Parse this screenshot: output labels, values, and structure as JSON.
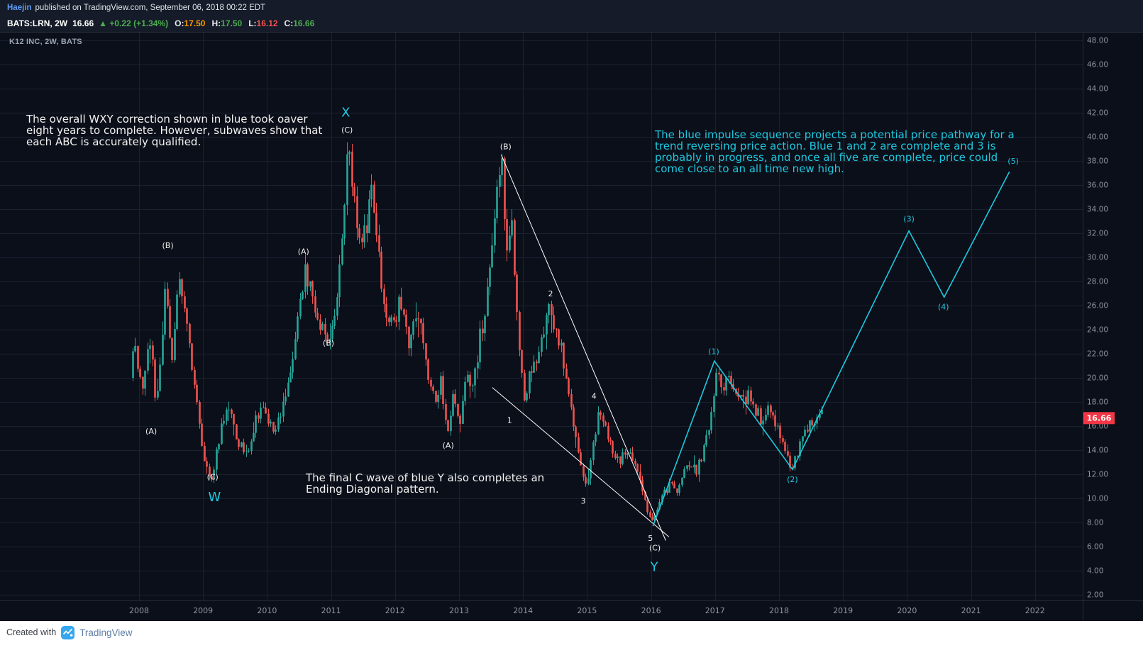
{
  "header": {
    "author": "Haejin",
    "published": "published on TradingView.com, September 06, 2018 00:22 EDT",
    "symbol": "BATS:LRN, 2W",
    "last": "16.66",
    "arrow": "▲",
    "change": "+0.22 (+1.34%)",
    "ohlc": [
      {
        "label": "O:",
        "value": "17.50",
        "color": "#ff9800"
      },
      {
        "label": "H:",
        "value": "17.50",
        "color": "#4caf50"
      },
      {
        "label": "L:",
        "value": "16.12",
        "color": "#ef5350"
      },
      {
        "label": "C:",
        "value": "16.66",
        "color": "#4caf50"
      }
    ]
  },
  "pane_title": "K12 INC, 2W, BATS",
  "footer": {
    "created_with": "Created with",
    "brand": "TradingView"
  },
  "colors": {
    "chart_bg": "#0b0f19",
    "header_bg": "#151b28",
    "grid": "#1a2130",
    "axis_text": "#8f96a3",
    "up": "#26a69a",
    "down": "#ef5350",
    "accent_cyan": "#1ec8df",
    "tag_red": "#f23645",
    "white_line": "#ffffff"
  },
  "chart_data": {
    "type": "candlestick",
    "title": "K12 INC, 2W, BATS",
    "symbol": "BATS:LRN",
    "timeframe": "2W",
    "x_axis": {
      "start": 2008,
      "end": 2022,
      "unit": "year"
    },
    "y_axis": {
      "min": 2,
      "max": 48,
      "step": 2
    },
    "price_line": {
      "value": 16.66,
      "tag": "16.66"
    },
    "candles": {
      "start": 2007.9,
      "end": 2018.7,
      "per_year": 26,
      "anchors": [
        [
          2007.9,
          20.0
        ],
        [
          2007.96,
          23.5
        ],
        [
          2008.02,
          21.0
        ],
        [
          2008.1,
          18.5
        ],
        [
          2008.2,
          24.0
        ],
        [
          2008.3,
          17.5
        ],
        [
          2008.38,
          22.0
        ],
        [
          2008.45,
          29.0
        ],
        [
          2008.55,
          21.0
        ],
        [
          2008.65,
          28.0
        ],
        [
          2008.8,
          23.5
        ],
        [
          2008.95,
          17.0
        ],
        [
          2009.05,
          13.5
        ],
        [
          2009.15,
          11.0
        ],
        [
          2009.3,
          15.5
        ],
        [
          2009.45,
          17.5
        ],
        [
          2009.55,
          15.0
        ],
        [
          2009.7,
          13.5
        ],
        [
          2009.85,
          16.5
        ],
        [
          2010.0,
          17.5
        ],
        [
          2010.15,
          15.0
        ],
        [
          2010.3,
          18.0
        ],
        [
          2010.45,
          21.5
        ],
        [
          2010.62,
          29.0
        ],
        [
          2010.72,
          27.0
        ],
        [
          2010.85,
          24.5
        ],
        [
          2011.0,
          22.5
        ],
        [
          2011.1,
          26.0
        ],
        [
          2011.2,
          31.0
        ],
        [
          2011.3,
          38.5
        ],
        [
          2011.4,
          34.0
        ],
        [
          2011.5,
          31.5
        ],
        [
          2011.6,
          33.0
        ],
        [
          2011.68,
          36.5
        ],
        [
          2011.8,
          29.0
        ],
        [
          2011.95,
          24.0
        ],
        [
          2012.1,
          26.0
        ],
        [
          2012.25,
          23.0
        ],
        [
          2012.4,
          25.0
        ],
        [
          2012.55,
          20.5
        ],
        [
          2012.65,
          18.0
        ],
        [
          2012.75,
          20.0
        ],
        [
          2012.85,
          15.5
        ],
        [
          2012.95,
          18.5
        ],
        [
          2013.05,
          16.5
        ],
        [
          2013.15,
          20.0
        ],
        [
          2013.25,
          19.0
        ],
        [
          2013.35,
          23.0
        ],
        [
          2013.45,
          26.0
        ],
        [
          2013.55,
          30.0
        ],
        [
          2013.65,
          36.0
        ],
        [
          2013.7,
          38.0
        ],
        [
          2013.78,
          30.0
        ],
        [
          2013.85,
          33.0
        ],
        [
          2013.95,
          24.0
        ],
        [
          2014.05,
          17.5
        ],
        [
          2014.15,
          20.5
        ],
        [
          2014.25,
          22.0
        ],
        [
          2014.35,
          24.0
        ],
        [
          2014.45,
          26.0
        ],
        [
          2014.55,
          23.5
        ],
        [
          2014.65,
          22.0
        ],
        [
          2014.75,
          18.5
        ],
        [
          2014.85,
          15.5
        ],
        [
          2014.95,
          12.0
        ],
        [
          2015.02,
          11.0
        ],
        [
          2015.12,
          14.0
        ],
        [
          2015.22,
          17.2
        ],
        [
          2015.32,
          16.0
        ],
        [
          2015.45,
          14.0
        ],
        [
          2015.55,
          13.0
        ],
        [
          2015.65,
          14.2
        ],
        [
          2015.75,
          13.0
        ],
        [
          2015.85,
          12.0
        ],
        [
          2015.95,
          9.5
        ],
        [
          2016.05,
          8.0
        ],
        [
          2016.15,
          9.2
        ],
        [
          2016.25,
          10.5
        ],
        [
          2016.35,
          11.5
        ],
        [
          2016.45,
          10.5
        ],
        [
          2016.55,
          12.5
        ],
        [
          2016.65,
          13.2
        ],
        [
          2016.75,
          12.2
        ],
        [
          2016.85,
          14.0
        ],
        [
          2016.95,
          16.5
        ],
        [
          2017.05,
          20.5
        ],
        [
          2017.15,
          19.0
        ],
        [
          2017.25,
          20.0
        ],
        [
          2017.35,
          19.5
        ],
        [
          2017.45,
          18.0
        ],
        [
          2017.55,
          18.5
        ],
        [
          2017.65,
          17.5
        ],
        [
          2017.75,
          16.5
        ],
        [
          2017.85,
          17.5
        ],
        [
          2017.95,
          16.5
        ],
        [
          2018.05,
          15.0
        ],
        [
          2018.15,
          13.5
        ],
        [
          2018.25,
          12.3
        ],
        [
          2018.35,
          14.5
        ],
        [
          2018.45,
          15.5
        ],
        [
          2018.55,
          16.5
        ],
        [
          2018.7,
          16.9
        ]
      ]
    },
    "overlays": {
      "impulse_projection": {
        "points": [
          [
            2016.03,
            7.7
          ],
          [
            2016.99,
            21.4
          ],
          [
            2018.21,
            12.4
          ],
          [
            2020.03,
            32.2
          ],
          [
            2020.58,
            26.7
          ],
          [
            2021.6,
            37.1
          ]
        ]
      },
      "ending_diagonal": [
        {
          "points": [
            [
              2013.66,
              38.5
            ],
            [
              2016.23,
              6.5
            ]
          ]
        },
        {
          "points": [
            [
              2013.52,
              19.2
            ],
            [
              2016.28,
              6.8
            ]
          ]
        }
      ],
      "wave_labels_white": [
        {
          "text": "(B)",
          "t": 2008.45,
          "p": 31.0
        },
        {
          "text": "(A)",
          "t": 2008.19,
          "p": 15.6
        },
        {
          "text": "(C)",
          "t": 2009.15,
          "p": 11.8
        },
        {
          "text": "(A)",
          "t": 2010.57,
          "p": 30.5
        },
        {
          "text": "(B)",
          "t": 2010.96,
          "p": 22.9
        },
        {
          "text": "(C)",
          "t": 2011.25,
          "p": 40.6
        },
        {
          "text": "(A)",
          "t": 2012.83,
          "p": 14.4
        },
        {
          "text": "(B)",
          "t": 2013.73,
          "p": 39.2
        },
        {
          "text": "1",
          "t": 2013.79,
          "p": 16.5
        },
        {
          "text": "2",
          "t": 2014.43,
          "p": 27.0
        },
        {
          "text": "3",
          "t": 2014.94,
          "p": 9.8
        },
        {
          "text": "4",
          "t": 2015.11,
          "p": 18.5
        },
        {
          "text": "5",
          "t": 2015.99,
          "p": 6.7
        },
        {
          "text": "(C)",
          "t": 2016.06,
          "p": 5.9
        }
      ],
      "wave_labels_cyan": [
        {
          "text": "W",
          "t": 2009.18,
          "p": 10.0,
          "size": 18
        },
        {
          "text": "X",
          "t": 2011.23,
          "p": 41.9,
          "size": 18
        },
        {
          "text": "Y",
          "t": 2016.05,
          "p": 4.2,
          "size": 18
        },
        {
          "text": "(1)",
          "t": 2016.98,
          "p": 22.2,
          "size": 11
        },
        {
          "text": "(2)",
          "t": 2018.21,
          "p": 11.6,
          "size": 11
        },
        {
          "text": "(3)",
          "t": 2020.03,
          "p": 33.2,
          "size": 11
        },
        {
          "text": "(4)",
          "t": 2020.57,
          "p": 25.9,
          "size": 11
        },
        {
          "text": "(5)",
          "t": 2021.66,
          "p": 38.0,
          "size": 11
        }
      ]
    },
    "annotations": {
      "wxy": "The overall WXY correction shown in blue took oaver eight years to complete. However, subwaves show that each ABC is accurately qualified.",
      "impulse": "The blue impulse sequence projects a potential price pathway for a trend reversing price action. Blue 1 and 2 are complete and 3 is probably in progress, and once all five are complete, price could come close to an all time new high.",
      "diagonal": "The final C wave of blue Y also completes an Ending Diagonal pattern."
    }
  }
}
